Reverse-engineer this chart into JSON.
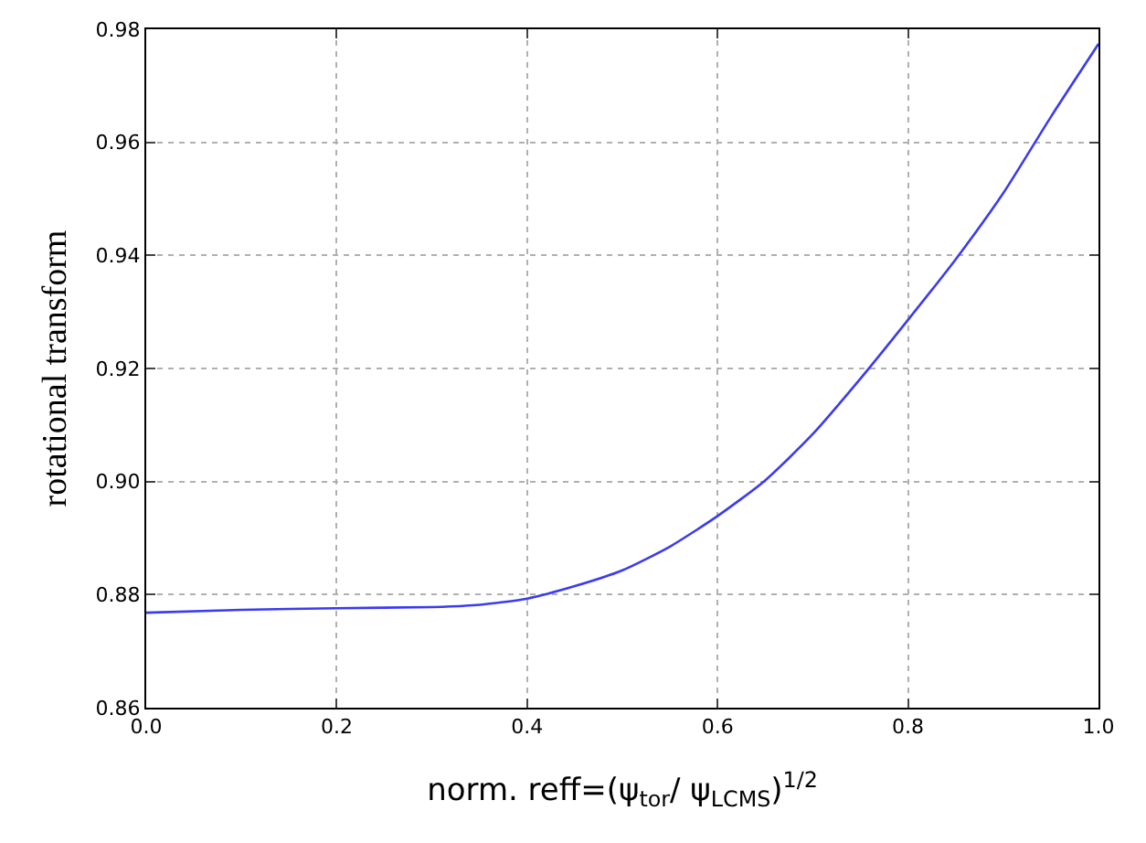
{
  "chart_data": {
    "type": "line",
    "xlabel": "norm. reff=(ψ$_{tor}$/ ψ$_{LCMS}$)$^{1/2}$",
    "ylabel": "rotational transform",
    "x": [
      0,
      0.1,
      0.2,
      0.3,
      0.35,
      0.4,
      0.45,
      0.5,
      0.55,
      0.6,
      0.65,
      0.7,
      0.75,
      0.8,
      0.85,
      0.9,
      0.95,
      1.0
    ],
    "series": [
      {
        "color": "#3b3bf0",
        "values": [
          0.8768,
          0.8773,
          0.8776,
          0.8778,
          0.8782,
          0.8793,
          0.8815,
          0.8843,
          0.8885,
          0.8939,
          0.9002,
          0.9084,
          0.9182,
          0.9286,
          0.9393,
          0.951,
          0.9645,
          0.9774
        ]
      }
    ],
    "xlim": [
      0,
      1
    ],
    "ylim": [
      0.86,
      0.98
    ],
    "xticks": [
      {
        "value": 0,
        "label": "0.0"
      },
      0.2,
      0.4,
      0.6,
      0.8,
      {
        "value": 1,
        "label": "1.0"
      }
    ],
    "yticks": [
      0.86,
      0.88,
      {
        "value": 0.9,
        "label": "0.90"
      },
      0.92,
      0.94,
      0.96,
      0.98
    ],
    "grid": true,
    "legend": false,
    "marker": "none",
    "line_style": "solid"
  }
}
